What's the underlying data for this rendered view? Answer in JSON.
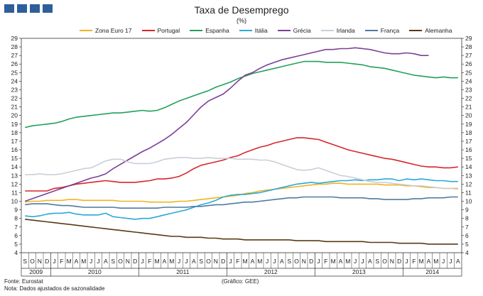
{
  "header": {
    "title": "Taxa de Desemprego",
    "subtitle": "(%)"
  },
  "footer": {
    "source": "Fonte: Eurostat",
    "note": "Nota: Dados ajustados de sazonalidade",
    "credit": "(Gráfico: GEE)"
  },
  "colors": {
    "logo": "#2e5f9a"
  },
  "chart_data": {
    "type": "line",
    "title": "Taxa de Desemprego",
    "subtitle": "(%)",
    "xlabel": "",
    "ylabel": "",
    "ylim": [
      4,
      29
    ],
    "yticks": [
      4,
      5,
      6,
      7,
      8,
      9,
      10,
      11,
      12,
      13,
      14,
      15,
      16,
      17,
      18,
      19,
      20,
      21,
      22,
      23,
      24,
      25,
      26,
      27,
      28,
      29
    ],
    "grid": false,
    "legend_position": "top",
    "month_labels": [
      "S",
      "O",
      "N",
      "D",
      "J",
      "F",
      "M",
      "A",
      "M",
      "J",
      "J",
      "A",
      "S",
      "O",
      "N",
      "D",
      "J",
      "F",
      "M",
      "A",
      "M",
      "J",
      "J",
      "A",
      "S",
      "O",
      "N",
      "D",
      "J",
      "F",
      "M",
      "A",
      "M",
      "J",
      "J",
      "A",
      "S",
      "O",
      "N",
      "D",
      "J",
      "F",
      "M",
      "A",
      "M",
      "J",
      "J",
      "A",
      "S",
      "O",
      "N",
      "D",
      "J",
      "F",
      "M",
      "A",
      "M",
      "J",
      "J",
      "A"
    ],
    "year_groups": [
      {
        "label": "2009",
        "count": 4
      },
      {
        "label": "2010",
        "count": 12
      },
      {
        "label": "2011",
        "count": 12
      },
      {
        "label": "2012",
        "count": 12
      },
      {
        "label": "2013",
        "count": 12
      },
      {
        "label": "2014",
        "count": 8
      }
    ],
    "series": [
      {
        "name": "Zona Euro 17",
        "color": "#f0b323",
        "values": [
          9.9,
          10.0,
          10.0,
          10.1,
          10.1,
          10.1,
          10.2,
          10.2,
          10.1,
          10.1,
          10.1,
          10.1,
          10.1,
          10.0,
          10.0,
          10.0,
          10.0,
          9.9,
          9.9,
          9.9,
          9.9,
          10.0,
          10.0,
          10.1,
          10.2,
          10.3,
          10.4,
          10.5,
          10.6,
          10.7,
          10.9,
          11.0,
          11.2,
          11.3,
          11.4,
          11.5,
          11.6,
          11.7,
          11.8,
          11.9,
          12.0,
          12.0,
          12.1,
          12.1,
          12.0,
          12.0,
          12.0,
          12.0,
          12.0,
          11.9,
          11.9,
          11.9,
          11.8,
          11.8,
          11.7,
          11.6,
          11.6,
          11.5,
          11.5,
          11.5
        ]
      },
      {
        "name": "Portugal",
        "color": "#d7262b",
        "values": [
          11.2,
          11.2,
          11.2,
          11.2,
          11.5,
          11.6,
          11.8,
          12.0,
          12.1,
          12.2,
          12.3,
          12.4,
          12.3,
          12.2,
          12.2,
          12.2,
          12.3,
          12.4,
          12.6,
          12.6,
          12.7,
          12.9,
          13.3,
          13.8,
          14.2,
          14.4,
          14.6,
          14.8,
          15.1,
          15.3,
          15.7,
          16.0,
          16.3,
          16.5,
          16.8,
          17.0,
          17.2,
          17.4,
          17.4,
          17.3,
          17.2,
          16.9,
          16.6,
          16.3,
          16.0,
          15.8,
          15.6,
          15.4,
          15.2,
          15.0,
          14.9,
          14.7,
          14.5,
          14.3,
          14.1,
          14.0,
          14.0,
          13.9,
          13.9,
          14.0
        ]
      },
      {
        "name": "Espanha",
        "color": "#21a05a",
        "values": [
          18.6,
          18.8,
          18.9,
          19.0,
          19.1,
          19.3,
          19.6,
          19.8,
          19.9,
          20.0,
          20.1,
          20.2,
          20.3,
          20.3,
          20.4,
          20.5,
          20.6,
          20.5,
          20.6,
          20.9,
          21.3,
          21.7,
          22.0,
          22.3,
          22.6,
          22.9,
          23.3,
          23.6,
          23.9,
          24.3,
          24.6,
          24.9,
          25.1,
          25.3,
          25.5,
          25.7,
          25.9,
          26.1,
          26.3,
          26.3,
          26.3,
          26.2,
          26.2,
          26.2,
          26.1,
          26.0,
          25.9,
          25.7,
          25.6,
          25.5,
          25.3,
          25.1,
          24.9,
          24.7,
          24.6,
          24.5,
          24.4,
          24.5,
          24.4,
          24.4
        ]
      },
      {
        "name": "Itália",
        "color": "#2aa8d8",
        "values": [
          8.3,
          8.2,
          8.3,
          8.5,
          8.6,
          8.6,
          8.7,
          8.5,
          8.4,
          8.4,
          8.4,
          8.6,
          8.2,
          8.1,
          8.0,
          7.9,
          8.0,
          8.0,
          8.2,
          8.4,
          8.6,
          8.8,
          9.0,
          9.3,
          9.6,
          9.8,
          10.1,
          10.5,
          10.7,
          10.8,
          10.8,
          10.9,
          11.0,
          11.2,
          11.4,
          11.6,
          11.8,
          12.0,
          12.1,
          12.2,
          12.1,
          12.2,
          12.3,
          12.4,
          12.4,
          12.5,
          12.4,
          12.5,
          12.5,
          12.6,
          12.6,
          12.4,
          12.6,
          12.5,
          12.6,
          12.5,
          12.4,
          12.4,
          12.3,
          12.3
        ]
      },
      {
        "name": "Grécia",
        "color": "#7b3f98",
        "values": [
          10.0,
          10.3,
          10.6,
          10.9,
          11.2,
          11.5,
          11.8,
          12.1,
          12.4,
          12.7,
          12.9,
          13.2,
          13.8,
          14.3,
          14.8,
          15.3,
          15.8,
          16.2,
          16.7,
          17.2,
          17.8,
          18.5,
          19.2,
          20.1,
          21.0,
          21.7,
          22.1,
          22.5,
          23.2,
          24.0,
          24.7,
          25.0,
          25.5,
          25.9,
          26.2,
          26.5,
          26.7,
          26.9,
          27.1,
          27.3,
          27.5,
          27.7,
          27.7,
          27.8,
          27.8,
          27.9,
          27.8,
          27.7,
          27.5,
          27.3,
          27.2,
          27.2,
          27.3,
          27.2,
          27.0,
          27.0,
          null,
          null,
          null,
          null
        ]
      },
      {
        "name": "Irlanda",
        "color": "#c8cfd8",
        "values": [
          13.1,
          13.1,
          13.2,
          13.1,
          13.1,
          13.2,
          13.4,
          13.6,
          13.8,
          13.9,
          14.3,
          14.7,
          14.9,
          14.9,
          14.6,
          14.4,
          14.4,
          14.4,
          14.6,
          14.9,
          15.0,
          15.1,
          15.1,
          15.0,
          15.0,
          15.1,
          15.0,
          15.0,
          15.0,
          14.9,
          14.9,
          14.9,
          14.8,
          14.8,
          14.6,
          14.3,
          14.0,
          13.7,
          13.6,
          13.7,
          13.9,
          13.6,
          13.3,
          13.0,
          12.9,
          12.7,
          12.5,
          12.3,
          12.2,
          12.2,
          12.1,
          12.0,
          11.9,
          11.8,
          11.8,
          11.7,
          11.6,
          11.5,
          11.5,
          11.4
        ]
      },
      {
        "name": "França",
        "color": "#4f7aa1",
        "values": [
          9.6,
          9.7,
          9.7,
          9.7,
          9.6,
          9.5,
          9.5,
          9.4,
          9.3,
          9.3,
          9.3,
          9.3,
          9.3,
          9.2,
          9.2,
          9.2,
          9.2,
          9.2,
          9.2,
          9.3,
          9.3,
          9.3,
          9.3,
          9.4,
          9.4,
          9.5,
          9.6,
          9.6,
          9.7,
          9.8,
          9.9,
          9.9,
          10.0,
          10.1,
          10.2,
          10.3,
          10.4,
          10.4,
          10.5,
          10.5,
          10.5,
          10.5,
          10.5,
          10.4,
          10.4,
          10.4,
          10.4,
          10.3,
          10.3,
          10.2,
          10.2,
          10.2,
          10.2,
          10.3,
          10.3,
          10.4,
          10.4,
          10.4,
          10.5,
          10.5
        ]
      },
      {
        "name": "Alemanha",
        "color": "#5a3a12",
        "values": [
          7.9,
          7.8,
          7.7,
          7.6,
          7.5,
          7.4,
          7.3,
          7.2,
          7.1,
          7.0,
          6.9,
          6.8,
          6.7,
          6.6,
          6.5,
          6.4,
          6.3,
          6.2,
          6.1,
          6.0,
          5.9,
          5.9,
          5.8,
          5.8,
          5.8,
          5.7,
          5.7,
          5.6,
          5.6,
          5.6,
          5.5,
          5.5,
          5.5,
          5.5,
          5.5,
          5.5,
          5.5,
          5.4,
          5.4,
          5.4,
          5.4,
          5.3,
          5.3,
          5.3,
          5.3,
          5.3,
          5.3,
          5.2,
          5.2,
          5.2,
          5.2,
          5.1,
          5.1,
          5.1,
          5.1,
          5.0,
          5.0,
          5.0,
          5.0,
          5.0
        ]
      }
    ]
  }
}
